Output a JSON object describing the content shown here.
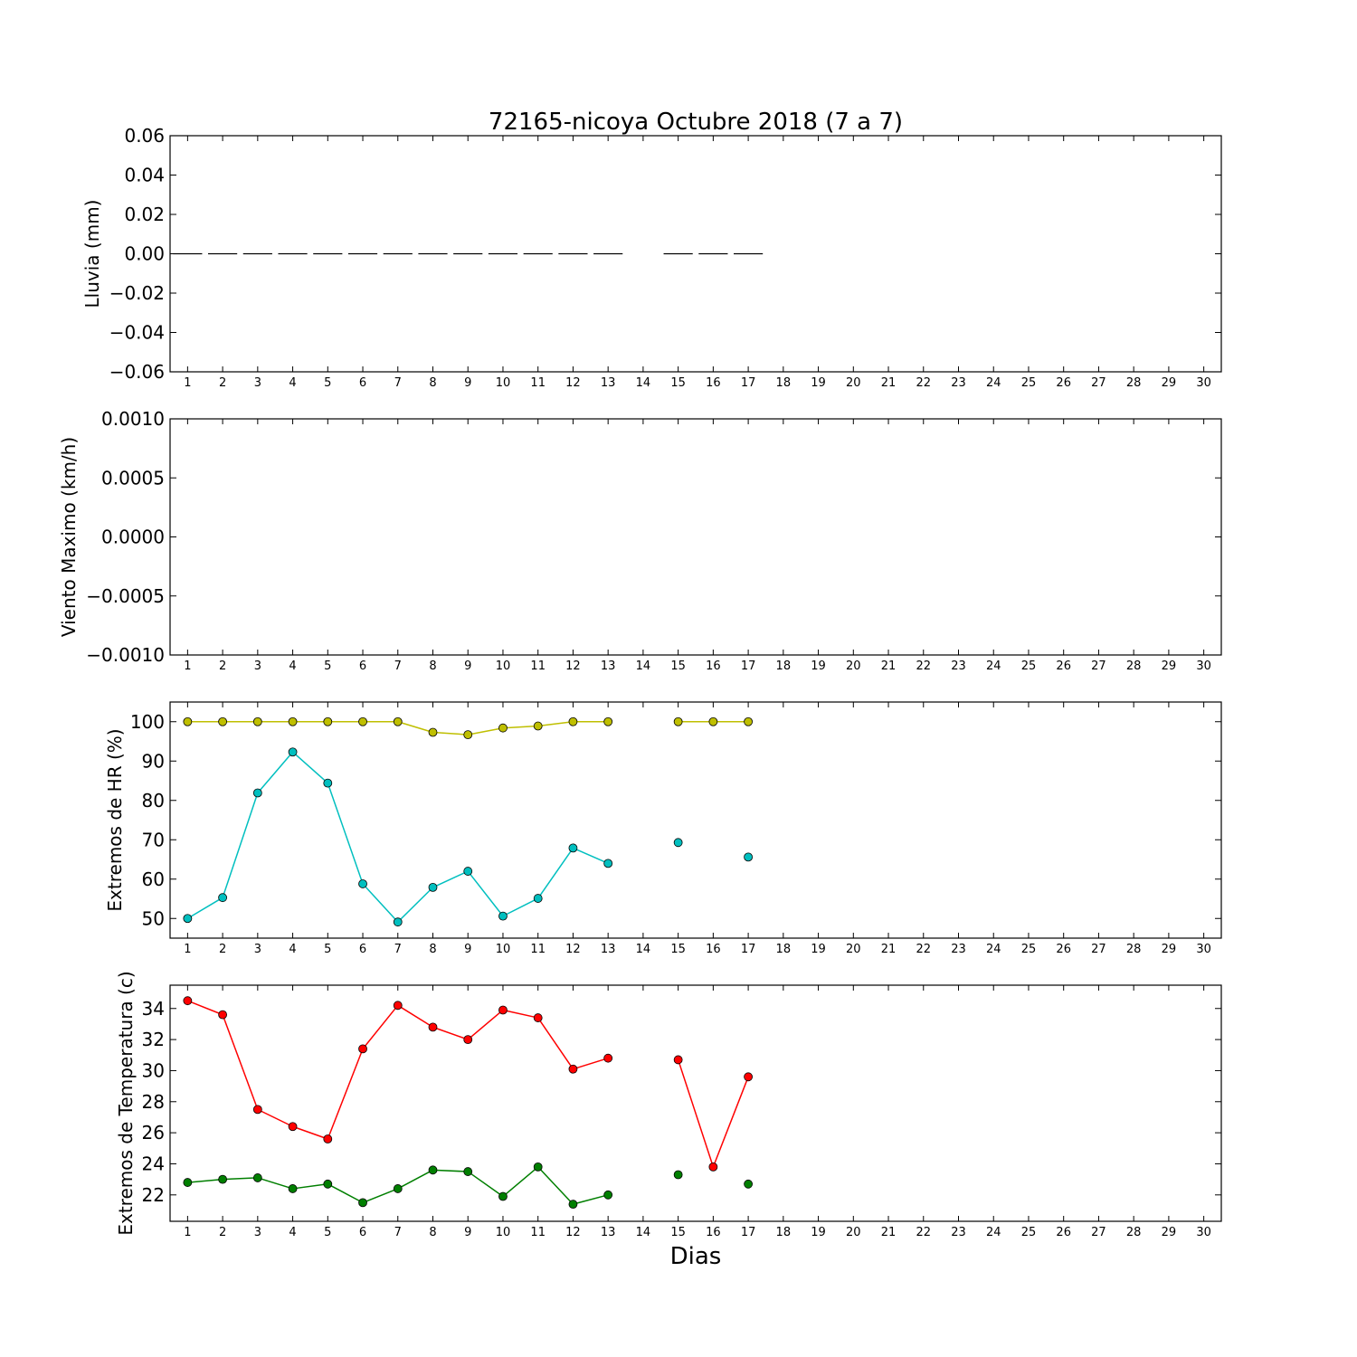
{
  "figure": {
    "title": "72165-nicoya Octubre 2018  (7 a 7)",
    "xlabel": "Dias"
  },
  "chart_data": [
    {
      "type": "bar",
      "ylabel": "Lluvia (mm)",
      "ylim": [
        -0.06,
        0.06
      ],
      "yticks": [
        0.06,
        0.04,
        0.02,
        0.0,
        -0.02,
        -0.04,
        -0.06
      ],
      "ytick_labels": [
        "0.06",
        "0.04",
        "0.02",
        "0.00",
        "−0.02",
        "−0.04",
        "−0.06"
      ],
      "x": [
        1,
        2,
        3,
        4,
        5,
        6,
        7,
        8,
        9,
        10,
        11,
        12,
        13,
        15,
        16,
        17
      ],
      "values": [
        0,
        0,
        0,
        0,
        0,
        0,
        0,
        0,
        0,
        0,
        0,
        0,
        0,
        0,
        0,
        0
      ],
      "color": "#000000"
    },
    {
      "type": "line",
      "ylabel": "Viento Maximo (km/h)",
      "ylim": [
        -0.001,
        0.001
      ],
      "yticks": [
        0.001,
        0.0005,
        0.0,
        -0.0005,
        -0.001
      ],
      "ytick_labels": [
        "0.0010",
        "0.0005",
        "0.0000",
        "−0.0005",
        "−0.0010"
      ],
      "series": []
    },
    {
      "type": "line",
      "ylabel": "Extremos de HR (%)",
      "ylim": [
        45,
        105
      ],
      "yticks": [
        100,
        90,
        80,
        70,
        60,
        50
      ],
      "ytick_labels": [
        "100",
        "90",
        "80",
        "70",
        "60",
        "50"
      ],
      "series": [
        {
          "color": "#bfbf00",
          "x": [
            1,
            2,
            3,
            4,
            5,
            6,
            7,
            8,
            9,
            10,
            11,
            12,
            13,
            15,
            16,
            17
          ],
          "values": [
            100,
            100,
            100,
            100,
            100,
            100,
            100,
            97.3,
            96.7,
            98.4,
            98.9,
            100,
            100,
            100,
            100,
            100
          ]
        },
        {
          "color": "#00bfbf",
          "x": [
            1,
            2,
            3,
            4,
            5,
            6,
            7,
            8,
            9,
            10,
            11,
            12,
            13,
            15,
            16,
            17
          ],
          "values": [
            50,
            55.3,
            81.9,
            92.3,
            84.4,
            58.8,
            49.1,
            57.9,
            62.0,
            50.6,
            55.1,
            67.9,
            64.0,
            69.3,
            null,
            65.6
          ]
        }
      ]
    },
    {
      "type": "line",
      "ylabel": "Extremos de Temperatura (c)",
      "ylim": [
        20.3,
        35.5
      ],
      "yticks": [
        34,
        32,
        30,
        28,
        26,
        24,
        22
      ],
      "ytick_labels": [
        "34",
        "32",
        "30",
        "28",
        "26",
        "24",
        "22"
      ],
      "series": [
        {
          "color": "#ff0000",
          "x": [
            1,
            2,
            3,
            4,
            5,
            6,
            7,
            8,
            9,
            10,
            11,
            12,
            13,
            15,
            16,
            17
          ],
          "values": [
            34.5,
            33.6,
            27.5,
            26.4,
            25.6,
            31.4,
            34.2,
            32.8,
            32.0,
            33.9,
            33.4,
            30.1,
            30.8,
            30.7,
            23.8,
            29.6
          ]
        },
        {
          "color": "#007f00",
          "x": [
            1,
            2,
            3,
            4,
            5,
            6,
            7,
            8,
            9,
            10,
            11,
            12,
            13,
            15,
            16,
            17
          ],
          "values": [
            22.8,
            23.0,
            23.1,
            22.4,
            22.7,
            21.5,
            22.4,
            23.6,
            23.5,
            21.9,
            23.8,
            21.4,
            22.0,
            23.3,
            null,
            22.7
          ]
        }
      ]
    }
  ],
  "xaxis": {
    "xlim": [
      0.5,
      30.5
    ],
    "ticks": [
      1,
      2,
      3,
      4,
      5,
      6,
      7,
      8,
      9,
      10,
      11,
      12,
      13,
      14,
      15,
      16,
      17,
      18,
      19,
      20,
      21,
      22,
      23,
      24,
      25,
      26,
      27,
      28,
      29,
      30
    ],
    "tick_labels": [
      "1",
      "2",
      "3",
      "4",
      "5",
      "6",
      "7",
      "8",
      "9",
      "10",
      "11",
      "12",
      "13",
      "14",
      "15",
      "16",
      "17",
      "18",
      "19",
      "20",
      "21",
      "22",
      "23",
      "24",
      "25",
      "26",
      "27",
      "28",
      "29",
      "30"
    ]
  }
}
